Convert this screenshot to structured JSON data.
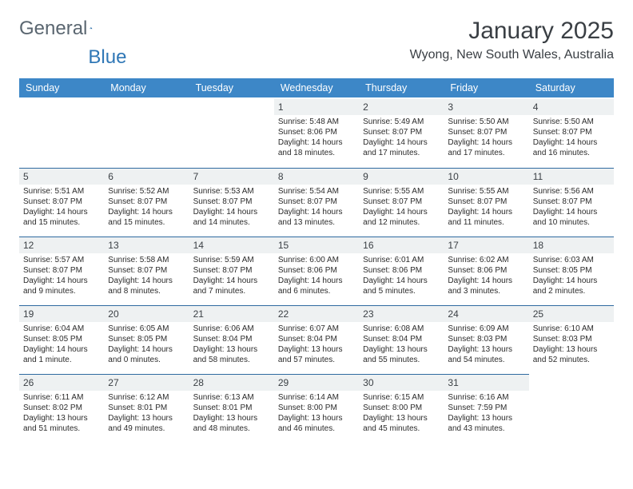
{
  "logo": {
    "word1": "General",
    "word2": "Blue",
    "icon_name": "sail-icon",
    "color1": "#5a6670",
    "color2": "#2f77b6"
  },
  "title": "January 2025",
  "location": "Wyong, New South Wales, Australia",
  "colors": {
    "header_bg": "#3d87c7",
    "header_text": "#ffffff",
    "daynum_bg": "#eef1f2",
    "row_border": "#2f6aa0",
    "page_bg": "#ffffff",
    "body_text": "#2b2b2b"
  },
  "typography": {
    "title_fontsize": 30,
    "location_fontsize": 16,
    "dayheader_fontsize": 12.5,
    "daynum_fontsize": 12,
    "cell_fontsize": 10,
    "font_family": "Arial"
  },
  "day_headers": [
    "Sunday",
    "Monday",
    "Tuesday",
    "Wednesday",
    "Thursday",
    "Friday",
    "Saturday"
  ],
  "weeks": [
    [
      {
        "empty": true
      },
      {
        "empty": true
      },
      {
        "empty": true
      },
      {
        "day": "1",
        "sunrise": "Sunrise: 5:48 AM",
        "sunset": "Sunset: 8:06 PM",
        "daylight1": "Daylight: 14 hours",
        "daylight2": "and 18 minutes."
      },
      {
        "day": "2",
        "sunrise": "Sunrise: 5:49 AM",
        "sunset": "Sunset: 8:07 PM",
        "daylight1": "Daylight: 14 hours",
        "daylight2": "and 17 minutes."
      },
      {
        "day": "3",
        "sunrise": "Sunrise: 5:50 AM",
        "sunset": "Sunset: 8:07 PM",
        "daylight1": "Daylight: 14 hours",
        "daylight2": "and 17 minutes."
      },
      {
        "day": "4",
        "sunrise": "Sunrise: 5:50 AM",
        "sunset": "Sunset: 8:07 PM",
        "daylight1": "Daylight: 14 hours",
        "daylight2": "and 16 minutes."
      }
    ],
    [
      {
        "day": "5",
        "sunrise": "Sunrise: 5:51 AM",
        "sunset": "Sunset: 8:07 PM",
        "daylight1": "Daylight: 14 hours",
        "daylight2": "and 15 minutes."
      },
      {
        "day": "6",
        "sunrise": "Sunrise: 5:52 AM",
        "sunset": "Sunset: 8:07 PM",
        "daylight1": "Daylight: 14 hours",
        "daylight2": "and 15 minutes."
      },
      {
        "day": "7",
        "sunrise": "Sunrise: 5:53 AM",
        "sunset": "Sunset: 8:07 PM",
        "daylight1": "Daylight: 14 hours",
        "daylight2": "and 14 minutes."
      },
      {
        "day": "8",
        "sunrise": "Sunrise: 5:54 AM",
        "sunset": "Sunset: 8:07 PM",
        "daylight1": "Daylight: 14 hours",
        "daylight2": "and 13 minutes."
      },
      {
        "day": "9",
        "sunrise": "Sunrise: 5:55 AM",
        "sunset": "Sunset: 8:07 PM",
        "daylight1": "Daylight: 14 hours",
        "daylight2": "and 12 minutes."
      },
      {
        "day": "10",
        "sunrise": "Sunrise: 5:55 AM",
        "sunset": "Sunset: 8:07 PM",
        "daylight1": "Daylight: 14 hours",
        "daylight2": "and 11 minutes."
      },
      {
        "day": "11",
        "sunrise": "Sunrise: 5:56 AM",
        "sunset": "Sunset: 8:07 PM",
        "daylight1": "Daylight: 14 hours",
        "daylight2": "and 10 minutes."
      }
    ],
    [
      {
        "day": "12",
        "sunrise": "Sunrise: 5:57 AM",
        "sunset": "Sunset: 8:07 PM",
        "daylight1": "Daylight: 14 hours",
        "daylight2": "and 9 minutes."
      },
      {
        "day": "13",
        "sunrise": "Sunrise: 5:58 AM",
        "sunset": "Sunset: 8:07 PM",
        "daylight1": "Daylight: 14 hours",
        "daylight2": "and 8 minutes."
      },
      {
        "day": "14",
        "sunrise": "Sunrise: 5:59 AM",
        "sunset": "Sunset: 8:07 PM",
        "daylight1": "Daylight: 14 hours",
        "daylight2": "and 7 minutes."
      },
      {
        "day": "15",
        "sunrise": "Sunrise: 6:00 AM",
        "sunset": "Sunset: 8:06 PM",
        "daylight1": "Daylight: 14 hours",
        "daylight2": "and 6 minutes."
      },
      {
        "day": "16",
        "sunrise": "Sunrise: 6:01 AM",
        "sunset": "Sunset: 8:06 PM",
        "daylight1": "Daylight: 14 hours",
        "daylight2": "and 5 minutes."
      },
      {
        "day": "17",
        "sunrise": "Sunrise: 6:02 AM",
        "sunset": "Sunset: 8:06 PM",
        "daylight1": "Daylight: 14 hours",
        "daylight2": "and 3 minutes."
      },
      {
        "day": "18",
        "sunrise": "Sunrise: 6:03 AM",
        "sunset": "Sunset: 8:05 PM",
        "daylight1": "Daylight: 14 hours",
        "daylight2": "and 2 minutes."
      }
    ],
    [
      {
        "day": "19",
        "sunrise": "Sunrise: 6:04 AM",
        "sunset": "Sunset: 8:05 PM",
        "daylight1": "Daylight: 14 hours",
        "daylight2": "and 1 minute."
      },
      {
        "day": "20",
        "sunrise": "Sunrise: 6:05 AM",
        "sunset": "Sunset: 8:05 PM",
        "daylight1": "Daylight: 14 hours",
        "daylight2": "and 0 minutes."
      },
      {
        "day": "21",
        "sunrise": "Sunrise: 6:06 AM",
        "sunset": "Sunset: 8:04 PM",
        "daylight1": "Daylight: 13 hours",
        "daylight2": "and 58 minutes."
      },
      {
        "day": "22",
        "sunrise": "Sunrise: 6:07 AM",
        "sunset": "Sunset: 8:04 PM",
        "daylight1": "Daylight: 13 hours",
        "daylight2": "and 57 minutes."
      },
      {
        "day": "23",
        "sunrise": "Sunrise: 6:08 AM",
        "sunset": "Sunset: 8:04 PM",
        "daylight1": "Daylight: 13 hours",
        "daylight2": "and 55 minutes."
      },
      {
        "day": "24",
        "sunrise": "Sunrise: 6:09 AM",
        "sunset": "Sunset: 8:03 PM",
        "daylight1": "Daylight: 13 hours",
        "daylight2": "and 54 minutes."
      },
      {
        "day": "25",
        "sunrise": "Sunrise: 6:10 AM",
        "sunset": "Sunset: 8:03 PM",
        "daylight1": "Daylight: 13 hours",
        "daylight2": "and 52 minutes."
      }
    ],
    [
      {
        "day": "26",
        "sunrise": "Sunrise: 6:11 AM",
        "sunset": "Sunset: 8:02 PM",
        "daylight1": "Daylight: 13 hours",
        "daylight2": "and 51 minutes."
      },
      {
        "day": "27",
        "sunrise": "Sunrise: 6:12 AM",
        "sunset": "Sunset: 8:01 PM",
        "daylight1": "Daylight: 13 hours",
        "daylight2": "and 49 minutes."
      },
      {
        "day": "28",
        "sunrise": "Sunrise: 6:13 AM",
        "sunset": "Sunset: 8:01 PM",
        "daylight1": "Daylight: 13 hours",
        "daylight2": "and 48 minutes."
      },
      {
        "day": "29",
        "sunrise": "Sunrise: 6:14 AM",
        "sunset": "Sunset: 8:00 PM",
        "daylight1": "Daylight: 13 hours",
        "daylight2": "and 46 minutes."
      },
      {
        "day": "30",
        "sunrise": "Sunrise: 6:15 AM",
        "sunset": "Sunset: 8:00 PM",
        "daylight1": "Daylight: 13 hours",
        "daylight2": "and 45 minutes."
      },
      {
        "day": "31",
        "sunrise": "Sunrise: 6:16 AM",
        "sunset": "Sunset: 7:59 PM",
        "daylight1": "Daylight: 13 hours",
        "daylight2": "and 43 minutes."
      },
      {
        "empty": true
      }
    ]
  ]
}
